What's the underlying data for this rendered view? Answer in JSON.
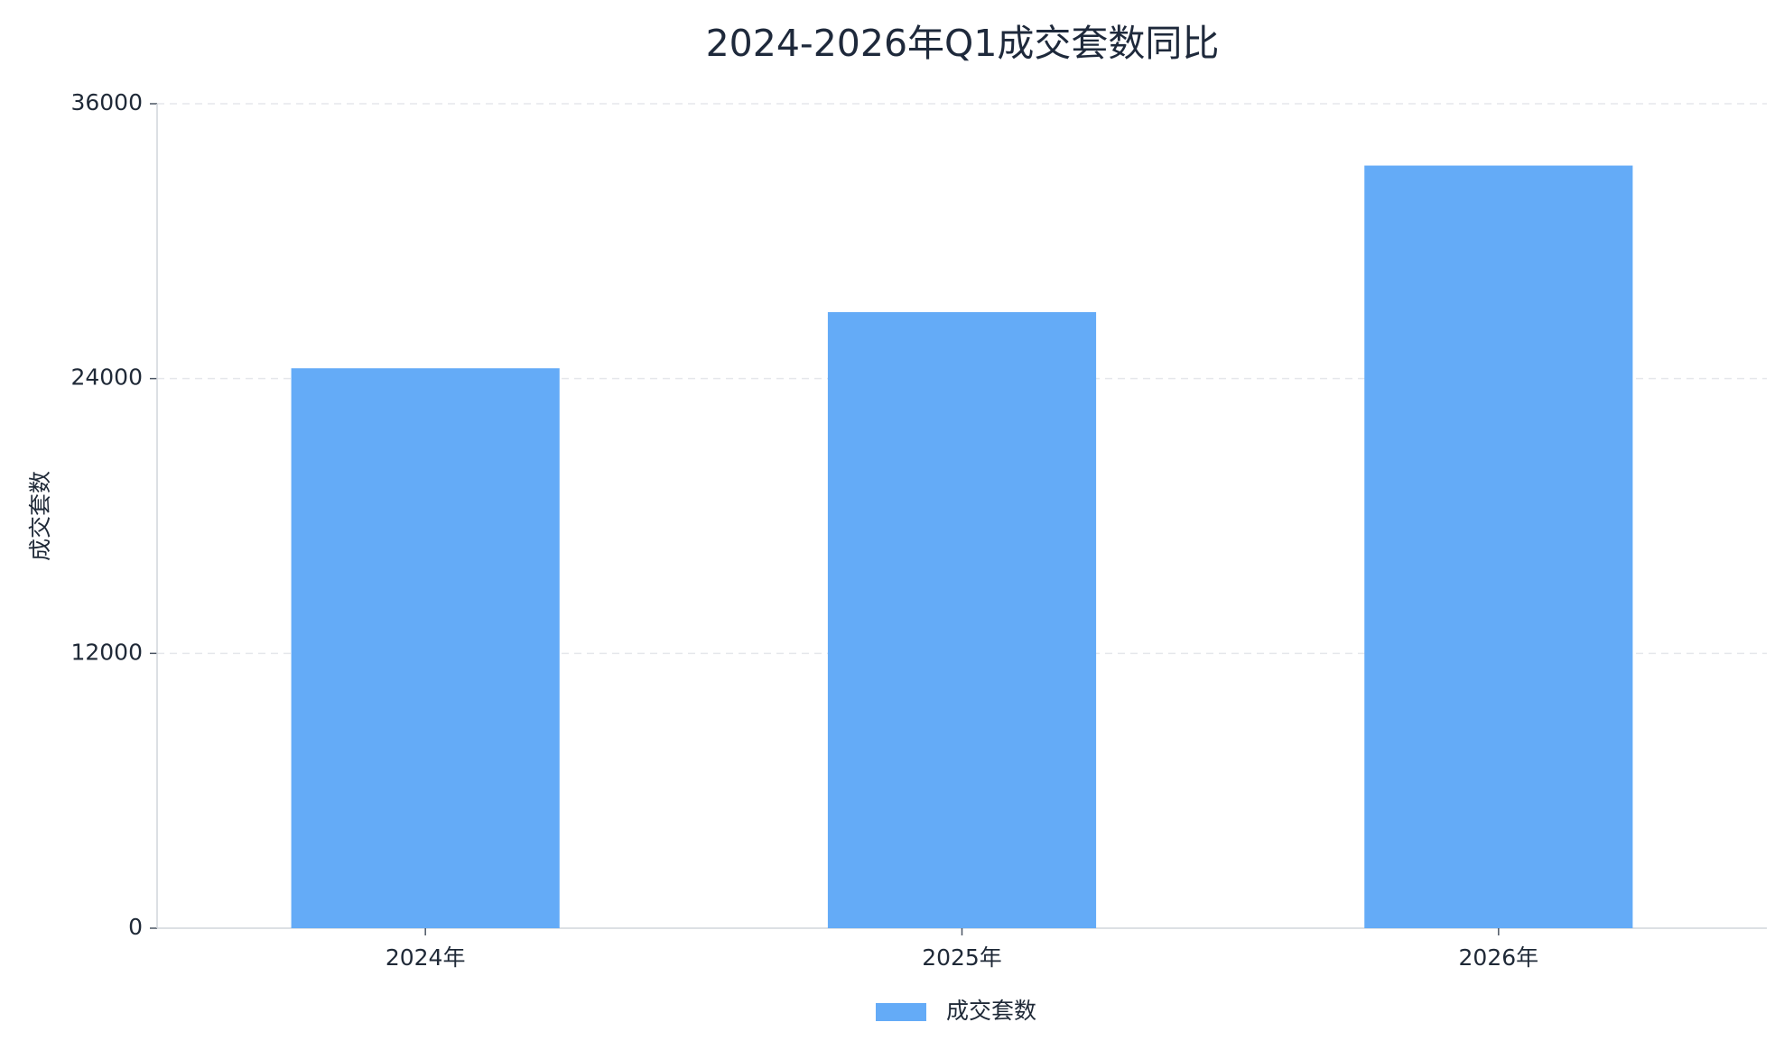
{
  "chart_data": {
    "type": "bar",
    "title": "2024-2026年Q1成交套数同比",
    "y_label": "成交套数",
    "categories": [
      "2024年",
      "2025年",
      "2026年"
    ],
    "series": [
      {
        "name": "成交套数",
        "color": "#64abf7",
        "values": [
          24450,
          26900,
          33300
        ]
      }
    ],
    "ylim": [
      0,
      36000
    ],
    "yticks": [
      0,
      12000,
      24000,
      36000
    ],
    "grid": true,
    "legend": "bottom"
  }
}
